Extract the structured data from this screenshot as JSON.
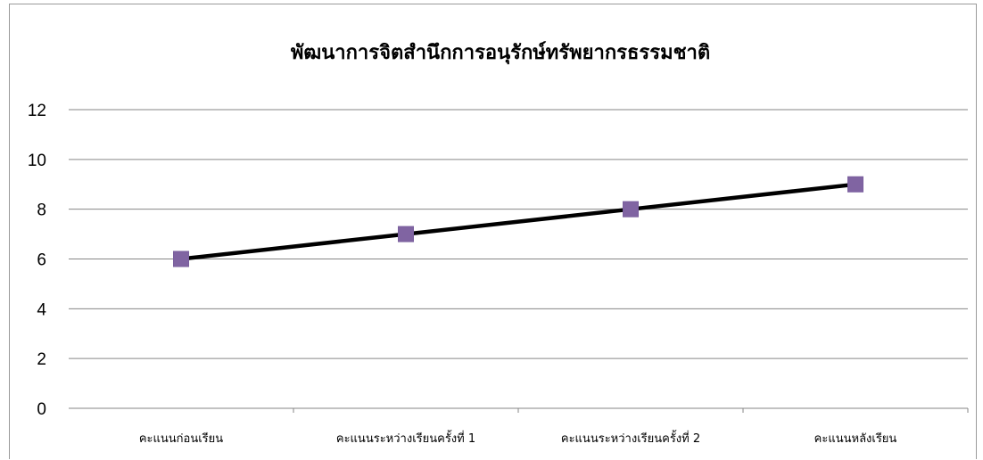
{
  "chart_data": {
    "type": "line",
    "title": "พัฒนาการจิตสำนึกการอนุรักษ์ทรัพยากรธรรมชาติ",
    "xlabel": "",
    "ylabel": "",
    "categories": [
      "คะแนนก่อนเรียน",
      "คะแนนระหว่างเรียนครั้งที่ 1",
      "คะแนนระหว่างเรียนครั้งที่ 2",
      "คะแนนหลังเรียน"
    ],
    "series": [
      {
        "values": [
          6,
          7,
          8,
          9
        ]
      }
    ],
    "ylim": [
      0,
      12
    ],
    "yticks": [
      "0",
      "2",
      "4",
      "6",
      "8",
      "10",
      "12"
    ],
    "grid": true,
    "legend": "none",
    "colors": {
      "line": "#000000",
      "marker": "#8064A2",
      "grid": "#868686"
    }
  }
}
